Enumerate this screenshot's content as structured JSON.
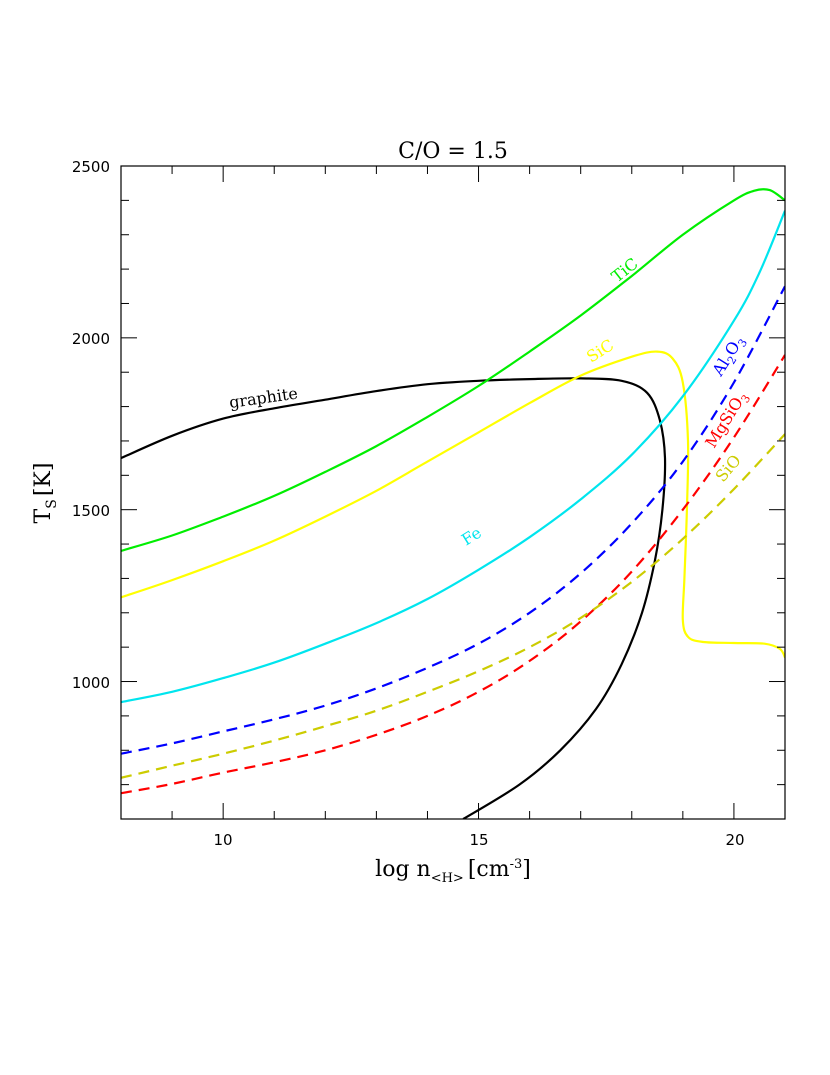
{
  "chart_data": {
    "type": "line",
    "title": "C/O = 1.5",
    "xlabel": "log n_<H> [cm^-3]",
    "ylabel": "T_S [K]",
    "xlim": [
      8,
      21
    ],
    "ylim": [
      600,
      2500
    ],
    "x_ticks_major": [
      10,
      15,
      20
    ],
    "x_tick_labels": [
      "10",
      "15",
      "20"
    ],
    "y_ticks_major": [
      1000,
      1500,
      2000,
      2500
    ],
    "y_tick_labels": [
      "1000",
      "1500",
      "2000",
      "2500"
    ],
    "grid": false,
    "legend": "inline labels on curves",
    "series": [
      {
        "name": "graphite",
        "color": "#000000",
        "style": "solid",
        "points": [
          [
            8,
            1650
          ],
          [
            9,
            1715
          ],
          [
            10,
            1765
          ],
          [
            11,
            1795
          ],
          [
            12,
            1820
          ],
          [
            13,
            1845
          ],
          [
            14,
            1865
          ],
          [
            15,
            1875
          ],
          [
            16,
            1880
          ],
          [
            17,
            1882
          ],
          [
            17.8,
            1875
          ],
          [
            18.3,
            1840
          ],
          [
            18.55,
            1760
          ],
          [
            18.65,
            1650
          ],
          [
            18.6,
            1500
          ],
          [
            18.45,
            1350
          ],
          [
            18.2,
            1200
          ],
          [
            17.8,
            1050
          ],
          [
            17.3,
            920
          ],
          [
            16.6,
            800
          ],
          [
            15.8,
            700
          ],
          [
            14.7,
            600
          ]
        ],
        "label_pos": [
          11.9,
          1830
        ]
      },
      {
        "name": "TiC",
        "color": "#00ee00",
        "style": "solid",
        "points": [
          [
            8,
            1380
          ],
          [
            9,
            1425
          ],
          [
            10,
            1480
          ],
          [
            11,
            1540
          ],
          [
            12,
            1610
          ],
          [
            13,
            1685
          ],
          [
            14,
            1770
          ],
          [
            15,
            1860
          ],
          [
            16,
            1960
          ],
          [
            17,
            2065
          ],
          [
            18,
            2180
          ],
          [
            19,
            2300
          ],
          [
            20,
            2400
          ],
          [
            20.4,
            2428
          ],
          [
            20.7,
            2430
          ],
          [
            21,
            2400
          ]
        ],
        "label_pos": [
          17.9,
          2210
        ]
      },
      {
        "name": "SiC",
        "color": "#ffff00",
        "style": "solid",
        "points": [
          [
            8,
            1245
          ],
          [
            9,
            1295
          ],
          [
            10,
            1350
          ],
          [
            11,
            1410
          ],
          [
            12,
            1480
          ],
          [
            13,
            1555
          ],
          [
            14,
            1640
          ],
          [
            15,
            1725
          ],
          [
            16,
            1810
          ],
          [
            17,
            1890
          ],
          [
            18,
            1945
          ],
          [
            18.5,
            1960
          ],
          [
            18.8,
            1940
          ],
          [
            19.0,
            1870
          ],
          [
            19.1,
            1700
          ],
          [
            19.08,
            1500
          ],
          [
            19.03,
            1300
          ],
          [
            19.0,
            1180
          ],
          [
            19.1,
            1130
          ],
          [
            19.4,
            1115
          ],
          [
            20,
            1112
          ],
          [
            20.6,
            1110
          ],
          [
            20.9,
            1095
          ],
          [
            21,
            1070
          ]
        ],
        "label_pos": [
          18.0,
          1960
        ]
      },
      {
        "name": "Fe",
        "color": "#00e5ee",
        "style": "solid",
        "points": [
          [
            8,
            940
          ],
          [
            9,
            970
          ],
          [
            10,
            1010
          ],
          [
            11,
            1055
          ],
          [
            12,
            1110
          ],
          [
            13,
            1170
          ],
          [
            14,
            1240
          ],
          [
            15,
            1325
          ],
          [
            16,
            1420
          ],
          [
            17,
            1530
          ],
          [
            18,
            1660
          ],
          [
            19,
            1830
          ],
          [
            20,
            2050
          ],
          [
            20.5,
            2190
          ],
          [
            21,
            2370
          ]
        ],
        "label_pos": [
          15.9,
          1460
        ]
      },
      {
        "name": "Al2O3",
        "color": "#0000ff",
        "style": "dashed",
        "points": [
          [
            8,
            790
          ],
          [
            9,
            820
          ],
          [
            10,
            855
          ],
          [
            11,
            890
          ],
          [
            12,
            930
          ],
          [
            13,
            980
          ],
          [
            14,
            1040
          ],
          [
            15,
            1110
          ],
          [
            16,
            1200
          ],
          [
            17,
            1315
          ],
          [
            18,
            1460
          ],
          [
            19,
            1640
          ],
          [
            20,
            1870
          ],
          [
            21,
            2150
          ]
        ],
        "label_pos": [
          19.8,
          1940
        ]
      },
      {
        "name": "MgSiO3",
        "color": "#ff0000",
        "style": "dashed",
        "points": [
          [
            8,
            675
          ],
          [
            9,
            702
          ],
          [
            10,
            735
          ],
          [
            11,
            765
          ],
          [
            12,
            800
          ],
          [
            13,
            845
          ],
          [
            14,
            900
          ],
          [
            15,
            970
          ],
          [
            16,
            1060
          ],
          [
            17,
            1175
          ],
          [
            18,
            1320
          ],
          [
            19,
            1500
          ],
          [
            20,
            1710
          ],
          [
            21,
            1950
          ]
        ],
        "label_pos": [
          19.8,
          1700
        ]
      },
      {
        "name": "SiO",
        "color": "#cccc00",
        "style": "dashed",
        "points": [
          [
            8,
            720
          ],
          [
            9,
            755
          ],
          [
            10,
            790
          ],
          [
            11,
            828
          ],
          [
            12,
            870
          ],
          [
            13,
            915
          ],
          [
            14,
            970
          ],
          [
            15,
            1030
          ],
          [
            16,
            1100
          ],
          [
            17,
            1185
          ],
          [
            18,
            1290
          ],
          [
            19,
            1415
          ],
          [
            20,
            1560
          ],
          [
            21,
            1720
          ]
        ],
        "label_pos": [
          19.9,
          1550
        ]
      }
    ]
  },
  "ui": {
    "title": "C/O = 1.5",
    "xlabel_main": "log n",
    "xlabel_sub": "<H>",
    "xlabel_unit": "[cm",
    "xlabel_exp": "-3",
    "xlabel_close": "]",
    "ylabel_main": "T",
    "ylabel_sub": "S",
    "ylabel_unit": "[K]",
    "labels": {
      "graphite": "graphite",
      "TiC": "TiC",
      "SiC": "SiC",
      "Fe": "Fe",
      "Al2O3_a": "Al",
      "Al2O3_b": "2",
      "Al2O3_c": "O",
      "Al2O3_d": "3",
      "MgSiO3_a": "MgSiO",
      "MgSiO3_b": "3",
      "SiO": "SiO"
    }
  }
}
